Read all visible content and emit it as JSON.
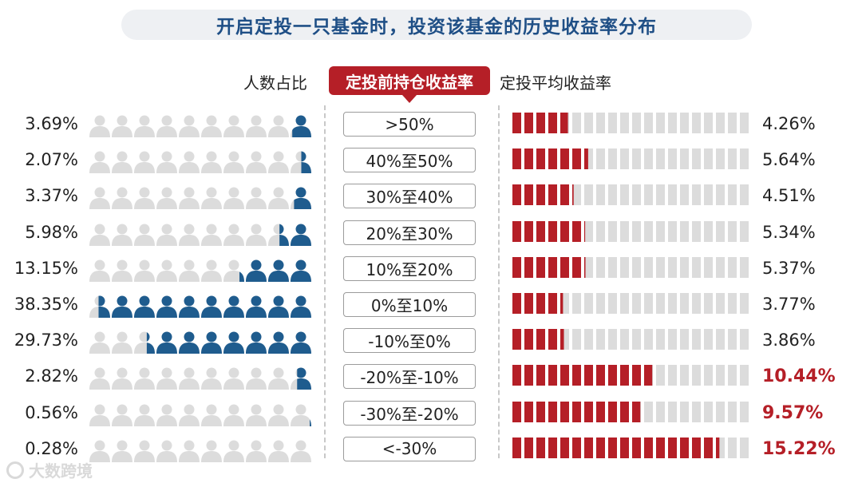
{
  "title": "开启定投一只基金时，投资该基金的历史收益率分布",
  "headers": {
    "left": "人数占比",
    "middle": "定投前持仓收益率",
    "right": "定投平均收益率"
  },
  "colors": {
    "title": "#1f4f86",
    "person_filled": "#1f5c8e",
    "person_empty": "#dcdcdc",
    "bar_filled": "#b51f27",
    "bar_empty": "#dcdcdc",
    "highlight": "#b51f27"
  },
  "icons": {
    "person": "person-icon",
    "watermark": "dashu-logo-icon"
  },
  "chart_data": {
    "type": "table",
    "title": "开启定投一只基金时，投资该基金的历史收益率分布",
    "columns": [
      "人数占比",
      "定投前持仓收益率",
      "定投平均收益率"
    ],
    "rows": [
      {
        "share_label": "3.69%",
        "share": 3.69,
        "range": ">50%",
        "avg_label": "4.26%",
        "avg": 4.26,
        "highlight": false
      },
      {
        "share_label": "2.07%",
        "share": 2.07,
        "range": "40%至50%",
        "avg_label": "5.64%",
        "avg": 5.64,
        "highlight": false
      },
      {
        "share_label": "3.37%",
        "share": 3.37,
        "range": "30%至40%",
        "avg_label": "4.51%",
        "avg": 4.51,
        "highlight": false
      },
      {
        "share_label": "5.98%",
        "share": 5.98,
        "range": "20%至30%",
        "avg_label": "5.34%",
        "avg": 5.34,
        "highlight": false
      },
      {
        "share_label": "13.15%",
        "share": 13.15,
        "range": "10%至20%",
        "avg_label": "5.37%",
        "avg": 5.37,
        "highlight": false
      },
      {
        "share_label": "38.35%",
        "share": 38.35,
        "range": "0%至10%",
        "avg_label": "3.77%",
        "avg": 3.77,
        "highlight": false
      },
      {
        "share_label": "29.73%",
        "share": 29.73,
        "range": "-10%至0%",
        "avg_label": "3.86%",
        "avg": 3.86,
        "highlight": false
      },
      {
        "share_label": "2.82%",
        "share": 2.82,
        "range": "-20%至-10%",
        "avg_label": "10.44%",
        "avg": 10.44,
        "highlight": true
      },
      {
        "share_label": "0.56%",
        "share": 0.56,
        "range": "-30%至-20%",
        "avg_label": "9.57%",
        "avg": 9.57,
        "highlight": true
      },
      {
        "share_label": "0.28%",
        "share": 0.28,
        "range": "<-30%",
        "avg_label": "15.22%",
        "avg": 15.22,
        "highlight": true
      }
    ]
  },
  "watermark": "大数跨境"
}
